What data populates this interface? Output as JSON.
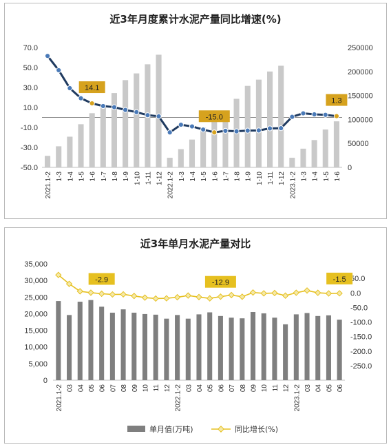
{
  "chart_data": [
    {
      "type": "bar+line",
      "title": "近3年月度累计水泥产量同比增速(%)",
      "categories": [
        "2021.1-2",
        "1-3",
        "1-4",
        "1-5",
        "1-6",
        "1-7",
        "1-8",
        "1-9",
        "1-10",
        "1-11",
        "1-12",
        "2022.1-2",
        "1-3",
        "1-4",
        "1-5",
        "1-6",
        "1-7",
        "1-8",
        "1-9",
        "1-10",
        "1-11",
        "1-12",
        "2023.1-2",
        "1-3",
        "1-4",
        "1-5",
        "1-6"
      ],
      "series": [
        {
          "kind": "bar",
          "axis": "right",
          "values": [
            24000,
            44000,
            64000,
            90000,
            113000,
            130000,
            155000,
            182000,
            196000,
            215000,
            235000,
            20000,
            38000,
            58000,
            83000,
            100000,
            118000,
            143000,
            170000,
            183000,
            200000,
            212000,
            20000,
            39000,
            57000,
            79000,
            96000
          ]
        },
        {
          "kind": "line",
          "axis": "left",
          "values": [
            61.6,
            47.3,
            29.3,
            19.2,
            14.1,
            11.4,
            10.3,
            7.5,
            5.3,
            2.3,
            1.1,
            -15.0,
            -7.3,
            -9.0,
            -12.1,
            -15.0,
            -13.4,
            -13.9,
            -13.2,
            -13.0,
            -11.0,
            -10.8,
            0.6,
            4.1,
            3.1,
            2.6,
            1.3
          ]
        }
      ],
      "left_axis": {
        "min": -50,
        "max": 70,
        "ticks": [
          "70.0",
          "50.0",
          "30.0",
          "10.0",
          "-10.0",
          "-30.0",
          "-50.0"
        ]
      },
      "right_axis": {
        "min": 0,
        "max": 250000,
        "ticks": [
          "250000",
          "200000",
          "150000",
          "100000",
          "50000",
          "0"
        ]
      },
      "annotations": [
        {
          "index": 4,
          "label": "14.1"
        },
        {
          "index": 15,
          "label": "-15.0"
        },
        {
          "index": 26,
          "label": "1.3"
        }
      ],
      "colors": {
        "bar": "#c9c9c9",
        "line": "#1f3a5f",
        "marker": "#4a7ab8",
        "highlight": "#d6a21e"
      }
    },
    {
      "type": "bar+line",
      "title": "近3年单月水泥产量对比",
      "categories": [
        "2021.1-2",
        "03",
        "04",
        "05",
        "06",
        "07",
        "08",
        "09",
        "10",
        "11",
        "12",
        "2022.1-2",
        "03",
        "04",
        "05",
        "06",
        "07",
        "08",
        "09",
        "10",
        "11",
        "12",
        "2023.1-2",
        "03",
        "04",
        "05",
        "06"
      ],
      "series": [
        {
          "kind": "bar",
          "axis": "left",
          "name": "单月值(万吨)",
          "values": [
            23800,
            19600,
            23600,
            24100,
            22100,
            20300,
            21300,
            20300,
            19900,
            19700,
            18500,
            19600,
            18500,
            19800,
            20400,
            19300,
            18800,
            18600,
            20500,
            20100,
            18800,
            16800,
            19800,
            20200,
            19300,
            19500,
            18200
          ]
        },
        {
          "kind": "line",
          "axis": "right",
          "name": "同比增长(%)",
          "values": [
            61.6,
            31.0,
            5.5,
            0.8,
            -2.9,
            -5.3,
            -5.0,
            -10.6,
            -16.2,
            -19.4,
            -18.6,
            -15.0,
            -9.1,
            -14.3,
            -18.8,
            -12.9,
            -7.5,
            -13.2,
            1.3,
            -1.6,
            -0.5,
            -9.4,
            0.6,
            8.2,
            0.4,
            -1.9,
            -1.5
          ]
        }
      ],
      "left_axis": {
        "min": 0,
        "max": 35000,
        "ticks": [
          "35,000",
          "30,000",
          "25,000",
          "20,000",
          "15,000",
          "10,000",
          "5,000",
          "0"
        ]
      },
      "right_axis": {
        "min": -300,
        "max": 100,
        "ticks": [
          "50.0",
          "0.0",
          "-50.0",
          "-100.0",
          "-150.0",
          "-200.0",
          "-250.0"
        ]
      },
      "annotations": [
        {
          "index": 4,
          "label": "-2.9"
        },
        {
          "index": 15,
          "label": "-12.9"
        },
        {
          "index": 26,
          "label": "-1.5"
        }
      ],
      "legend": [
        "单月值(万吨)",
        "同比增长(%)"
      ],
      "colors": {
        "bar": "#7f7f7f",
        "line": "#e6c020",
        "marker": "#f5e9a8"
      }
    }
  ]
}
